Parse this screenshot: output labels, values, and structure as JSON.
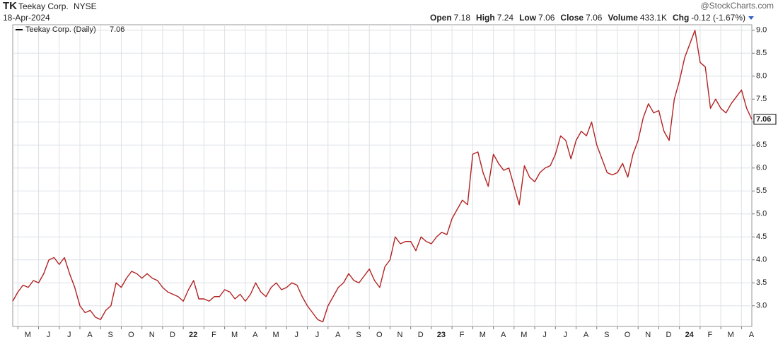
{
  "header": {
    "symbol": "TK",
    "company": "Teekay Corp.",
    "exchange": "NYSE",
    "date": "18-Apr-2024",
    "watermark": "@StockCharts.com",
    "quote": [
      {
        "label": "Open",
        "value": "7.18"
      },
      {
        "label": "High",
        "value": "7.24"
      },
      {
        "label": "Low",
        "value": "7.06"
      },
      {
        "label": "Close",
        "value": "7.06"
      },
      {
        "label": "Volume",
        "value": "433.1K"
      },
      {
        "label": "Chg",
        "value": "-0.12 (-1.67%)"
      }
    ]
  },
  "chart_data": {
    "type": "line",
    "categories": [
      null,
      "M",
      null,
      null,
      null,
      "J",
      null,
      null,
      null,
      "J",
      null,
      null,
      null,
      "A",
      null,
      null,
      null,
      "S",
      null,
      null,
      null,
      "O",
      null,
      null,
      null,
      "N",
      null,
      null,
      null,
      "D",
      null,
      null,
      null,
      "22",
      null,
      null,
      null,
      "F",
      null,
      null,
      null,
      "M",
      null,
      null,
      null,
      "A",
      null,
      null,
      null,
      "M",
      null,
      null,
      null,
      "J",
      null,
      null,
      null,
      "J",
      null,
      null,
      null,
      "A",
      null,
      null,
      null,
      "S",
      null,
      null,
      null,
      "O",
      null,
      null,
      null,
      "N",
      null,
      null,
      null,
      "D",
      null,
      null,
      null,
      "23",
      null,
      null,
      null,
      "F",
      null,
      null,
      null,
      "M",
      null,
      null,
      null,
      "A",
      null,
      null,
      null,
      "M",
      null,
      null,
      null,
      "J",
      null,
      null,
      null,
      "J",
      null,
      null,
      null,
      "A",
      null,
      null,
      null,
      "S",
      null,
      null,
      null,
      "O",
      null,
      null,
      null,
      "N",
      null,
      null,
      null,
      "D",
      null,
      null,
      null,
      "24",
      null,
      null,
      null,
      "F",
      null,
      null,
      null,
      "M",
      null,
      null,
      null,
      "A",
      null,
      null
    ],
    "series": [
      {
        "name": "Teekay Corp. (Daily)",
        "color": "#b22222",
        "values": [
          3.1,
          3.3,
          3.45,
          3.4,
          3.55,
          3.5,
          3.7,
          4.0,
          4.05,
          3.9,
          4.05,
          3.7,
          3.4,
          3.0,
          2.85,
          2.9,
          2.75,
          2.7,
          2.9,
          3.0,
          3.5,
          3.4,
          3.6,
          3.75,
          3.7,
          3.6,
          3.7,
          3.6,
          3.55,
          3.4,
          3.3,
          3.25,
          3.2,
          3.1,
          3.35,
          3.55,
          3.15,
          3.15,
          3.1,
          3.2,
          3.2,
          3.35,
          3.3,
          3.15,
          3.25,
          3.1,
          3.25,
          3.5,
          3.3,
          3.2,
          3.4,
          3.5,
          3.35,
          3.4,
          3.5,
          3.45,
          3.2,
          3.0,
          2.85,
          2.7,
          2.65,
          3.0,
          3.2,
          3.4,
          3.5,
          3.7,
          3.55,
          3.5,
          3.65,
          3.8,
          3.55,
          3.4,
          3.85,
          4.0,
          4.5,
          4.35,
          4.4,
          4.4,
          4.2,
          4.5,
          4.4,
          4.35,
          4.5,
          4.6,
          4.55,
          4.9,
          5.1,
          5.3,
          5.2,
          6.3,
          6.35,
          5.9,
          5.6,
          6.3,
          6.1,
          5.95,
          6.0,
          5.6,
          5.2,
          6.05,
          5.8,
          5.7,
          5.9,
          6.0,
          6.05,
          6.3,
          6.7,
          6.6,
          6.2,
          6.6,
          6.8,
          6.7,
          7.0,
          6.5,
          6.2,
          5.9,
          5.85,
          5.9,
          6.1,
          5.8,
          6.3,
          6.6,
          7.1,
          7.4,
          7.2,
          7.25,
          6.8,
          6.6,
          7.5,
          7.9,
          8.4,
          8.7,
          9.0,
          8.3,
          8.2,
          7.3,
          7.5,
          7.3,
          7.2,
          7.4,
          7.55,
          7.7,
          7.3,
          7.06
        ]
      }
    ],
    "ylim": [
      2.55,
      9.12
    ],
    "yticks": [
      {
        "value": 3,
        "label": "3.0"
      },
      {
        "value": 3.5,
        "label": "3.5"
      },
      {
        "value": 4,
        "label": "4.0"
      },
      {
        "value": 4.5,
        "label": "4.5"
      },
      {
        "value": 5,
        "label": "5.0"
      },
      {
        "value": 5.5,
        "label": "5.5"
      },
      {
        "value": 6,
        "label": "6.0"
      },
      {
        "value": 6.5,
        "label": "6.5"
      },
      {
        "value": 7,
        "label": "7.0"
      },
      {
        "value": 7.5,
        "label": "7.5"
      },
      {
        "value": 8,
        "label": "8.0"
      },
      {
        "value": 8.5,
        "label": "8.5"
      },
      {
        "value": 9,
        "label": "9.0"
      }
    ],
    "grid": true
  }
}
